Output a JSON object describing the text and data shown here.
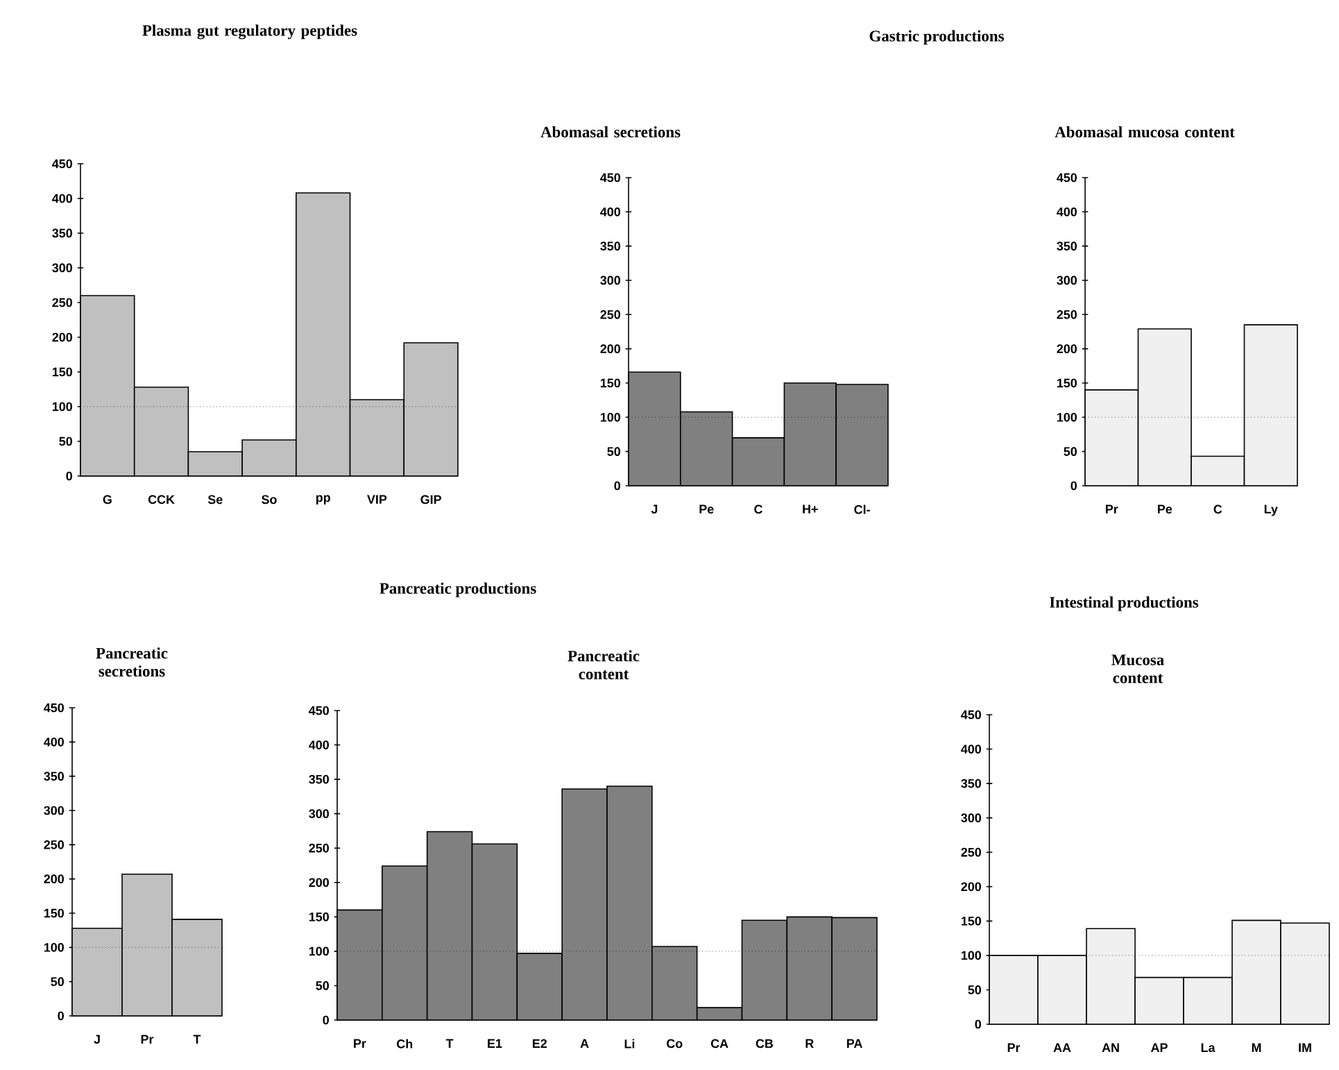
{
  "chart_data": [
    {
      "type": "bar",
      "title": "Plasma gut regulatory peptides",
      "categories": [
        "G",
        "CCK",
        "Se",
        "So",
        "pp",
        "VIP",
        "GIP"
      ],
      "values": [
        260,
        128,
        35,
        52,
        408,
        110,
        192
      ],
      "color": "#c0c0c0",
      "ylim": [
        0,
        450
      ],
      "yticks": [
        0,
        50,
        100,
        150,
        200,
        250,
        300,
        350,
        400,
        450
      ],
      "ref_lines": [
        {
          "axis": "y",
          "value": 100,
          "line_style": "dotted"
        }
      ]
    },
    {
      "type": "bar",
      "title": "Abomasal secretions",
      "annotations": [
        "Gastric productions"
      ],
      "categories": [
        "J",
        "Pe",
        "C",
        "H+",
        "Cl-"
      ],
      "values": [
        166,
        108,
        70,
        150,
        148
      ],
      "color": "#808080",
      "ylim": [
        0,
        450
      ],
      "yticks": [
        0,
        50,
        100,
        150,
        200,
        250,
        300,
        350,
        400,
        450
      ],
      "ref_lines": [
        {
          "axis": "y",
          "value": 100,
          "line_style": "dotted"
        }
      ]
    },
    {
      "type": "bar",
      "title": "Abomasal mucosa content",
      "categories": [
        "Pr",
        "Pe",
        "C",
        "Ly"
      ],
      "values": [
        140,
        229,
        43,
        235
      ],
      "color": "#f0f0f0",
      "ylim": [
        0,
        450
      ],
      "yticks": [
        0,
        50,
        100,
        150,
        200,
        250,
        300,
        350,
        400,
        450
      ],
      "ref_lines": [
        {
          "axis": "y",
          "value": 100,
          "line_style": "dotted"
        }
      ]
    },
    {
      "type": "bar",
      "title": "Pancreatic secretions",
      "annotations": [
        "Pancreatic productions"
      ],
      "categories": [
        "J",
        "Pr",
        "T"
      ],
      "values": [
        128,
        207,
        141
      ],
      "color": "#c0c0c0",
      "ylim": [
        0,
        450
      ],
      "yticks": [
        0,
        50,
        100,
        150,
        200,
        250,
        300,
        350,
        400,
        450
      ],
      "ref_lines": [
        {
          "axis": "y",
          "value": 100,
          "line_style": "dotted"
        }
      ]
    },
    {
      "type": "bar",
      "title": "Pancreatic content",
      "categories": [
        "Pr",
        "Ch",
        "T",
        "E1",
        "E2",
        "A",
        "Li",
        "Co",
        "CA",
        "CB",
        "R",
        "PA"
      ],
      "values": [
        160,
        224,
        274,
        256,
        97,
        336,
        340,
        107,
        18,
        145,
        150,
        149
      ],
      "color": "#808080",
      "ylim": [
        0,
        450
      ],
      "yticks": [
        0,
        50,
        100,
        150,
        200,
        250,
        300,
        350,
        400,
        450
      ],
      "ref_lines": [
        {
          "axis": "y",
          "value": 100,
          "line_style": "dotted"
        }
      ]
    },
    {
      "type": "bar",
      "title": "Mucosa content",
      "annotations": [
        "Intestinal productions"
      ],
      "categories": [
        "Pr",
        "AA",
        "AN",
        "AP",
        "La",
        "M",
        "IM"
      ],
      "values": [
        100,
        100,
        139,
        68,
        68,
        151,
        147
      ],
      "color": "#f0f0f0",
      "ylim": [
        0,
        450
      ],
      "yticks": [
        0,
        50,
        100,
        150,
        200,
        250,
        300,
        350,
        400,
        450
      ],
      "ref_lines": [
        {
          "axis": "y",
          "value": 100,
          "line_style": "dotted"
        }
      ]
    }
  ]
}
